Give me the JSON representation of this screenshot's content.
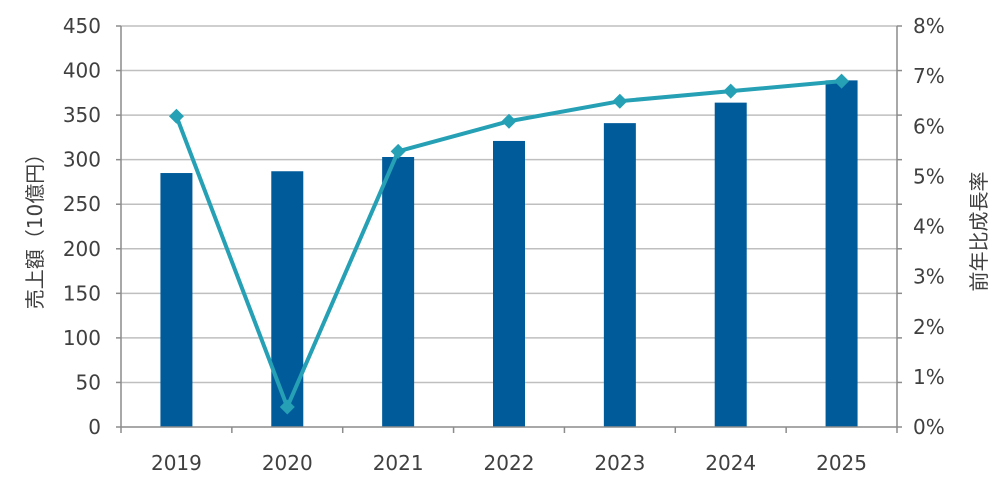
{
  "chart_data": {
    "type": "bar",
    "categories": [
      "2019",
      "2020",
      "2021",
      "2022",
      "2023",
      "2024",
      "2025"
    ],
    "series": [
      {
        "values": [
          285,
          287,
          303,
          321,
          341,
          364,
          389
        ],
        "type": "bar",
        "axis": "left"
      },
      {
        "values": [
          6.2,
          0.4,
          5.5,
          6.1,
          6.5,
          6.7,
          6.9
        ],
        "type": "line",
        "axis": "right",
        "unit": "%"
      }
    ],
    "ylabel": "売上額（10億円）",
    "y2label": "前年比成長率",
    "ylim": [
      0,
      450
    ],
    "y2lim": [
      0,
      8
    ],
    "yticks": [
      "0",
      "50",
      "100",
      "150",
      "200",
      "250",
      "300",
      "350",
      "400",
      "450"
    ],
    "y2ticks": [
      "0%",
      "1%",
      "2%",
      "3%",
      "4%",
      "5%",
      "6%",
      "7%",
      "8%"
    ],
    "grid": true,
    "legend": "none",
    "colors": {
      "bar": "#005b9a",
      "line": "#25a0b5",
      "grid": "#bfbfbf",
      "axis": "#8c8c8c",
      "text": "#404040"
    }
  }
}
